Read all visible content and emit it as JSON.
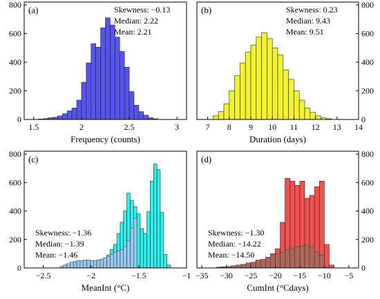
{
  "chart_data": [
    {
      "type": "bar",
      "panel_label": "(a)",
      "xlabel": "Frequency (counts)",
      "xlim": [
        1.4,
        3.1
      ],
      "ylim": [
        0,
        820
      ],
      "xticks": [
        1.5,
        2,
        2.5,
        3
      ],
      "xtick_labels": [
        "1.5",
        "2",
        "2.5",
        "3"
      ],
      "yticks": [
        0,
        200,
        400,
        600,
        800
      ],
      "ytick_labels": [
        "0",
        "200",
        "400",
        "600",
        "800"
      ],
      "yaxis": "left",
      "stats": {
        "skewness": "Skewness: −0.13",
        "median": "Median: 2.22",
        "mean": "Mean: 2.21"
      },
      "stats_position": "top-right",
      "bar_color": "#5555ee",
      "bin_width": 0.05,
      "bins": [
        {
          "x0": 1.55,
          "x1": 1.6,
          "count": 3
        },
        {
          "x0": 1.6,
          "x1": 1.65,
          "count": 6
        },
        {
          "x0": 1.65,
          "x1": 1.7,
          "count": 12
        },
        {
          "x0": 1.7,
          "x1": 1.75,
          "count": 15
        },
        {
          "x0": 1.75,
          "x1": 1.8,
          "count": 25
        },
        {
          "x0": 1.8,
          "x1": 1.85,
          "count": 40
        },
        {
          "x0": 1.85,
          "x1": 1.9,
          "count": 60
        },
        {
          "x0": 1.9,
          "x1": 1.95,
          "count": 80
        },
        {
          "x0": 1.95,
          "x1": 2.0,
          "count": 135
        },
        {
          "x0": 2.0,
          "x1": 2.05,
          "count": 260
        },
        {
          "x0": 2.05,
          "x1": 2.1,
          "count": 395
        },
        {
          "x0": 2.1,
          "x1": 2.15,
          "count": 530
        },
        {
          "x0": 2.15,
          "x1": 2.2,
          "count": 505
        },
        {
          "x0": 2.2,
          "x1": 2.25,
          "count": 640
        },
        {
          "x0": 2.25,
          "x1": 2.3,
          "count": 710
        },
        {
          "x0": 2.3,
          "x1": 2.35,
          "count": 660
        },
        {
          "x0": 2.35,
          "x1": 2.4,
          "count": 575
        },
        {
          "x0": 2.4,
          "x1": 2.45,
          "count": 475
        },
        {
          "x0": 2.45,
          "x1": 2.5,
          "count": 365
        },
        {
          "x0": 2.5,
          "x1": 2.55,
          "count": 195
        },
        {
          "x0": 2.55,
          "x1": 2.6,
          "count": 100
        },
        {
          "x0": 2.6,
          "x1": 2.65,
          "count": 55
        },
        {
          "x0": 2.65,
          "x1": 2.7,
          "count": 30
        },
        {
          "x0": 2.7,
          "x1": 2.75,
          "count": 12
        },
        {
          "x0": 2.75,
          "x1": 2.8,
          "count": 5
        }
      ]
    },
    {
      "type": "bar",
      "panel_label": "(b)",
      "xlabel": "Duration (days)",
      "xlim": [
        6.5,
        14
      ],
      "ylim": [
        0,
        820
      ],
      "xticks": [
        7,
        8,
        9,
        10,
        11,
        12,
        13,
        14
      ],
      "xtick_labels": [
        "7",
        "8",
        "9",
        "10",
        "11",
        "12",
        "13",
        "14"
      ],
      "yticks": [
        0,
        200,
        400,
        600,
        800
      ],
      "ytick_labels": [
        "0",
        "200",
        "400",
        "600",
        "800"
      ],
      "yaxis": "right",
      "stats": {
        "skewness": "Skewness: 0.23",
        "median": "Median: 9.43",
        "mean": "Mean: 9.51"
      },
      "stats_position": "top-right",
      "bar_color": "#f2f230",
      "bin_width": 0.25,
      "bins": [
        {
          "x0": 7.25,
          "x1": 7.5,
          "count": 25
        },
        {
          "x0": 7.5,
          "x1": 7.75,
          "count": 55
        },
        {
          "x0": 7.75,
          "x1": 8.0,
          "count": 110
        },
        {
          "x0": 8.0,
          "x1": 8.25,
          "count": 200
        },
        {
          "x0": 8.25,
          "x1": 8.5,
          "count": 305
        },
        {
          "x0": 8.5,
          "x1": 8.75,
          "count": 395
        },
        {
          "x0": 8.75,
          "x1": 9.0,
          "count": 470
        },
        {
          "x0": 9.0,
          "x1": 9.25,
          "count": 520
        },
        {
          "x0": 9.25,
          "x1": 9.5,
          "count": 575
        },
        {
          "x0": 9.5,
          "x1": 9.75,
          "count": 605
        },
        {
          "x0": 9.75,
          "x1": 10.0,
          "count": 565
        },
        {
          "x0": 10.0,
          "x1": 10.25,
          "count": 500
        },
        {
          "x0": 10.25,
          "x1": 10.5,
          "count": 450
        },
        {
          "x0": 10.5,
          "x1": 10.75,
          "count": 345
        },
        {
          "x0": 10.75,
          "x1": 11.0,
          "count": 280
        },
        {
          "x0": 11.0,
          "x1": 11.25,
          "count": 200
        },
        {
          "x0": 11.25,
          "x1": 11.5,
          "count": 135
        },
        {
          "x0": 11.5,
          "x1": 11.75,
          "count": 80
        },
        {
          "x0": 11.75,
          "x1": 12.0,
          "count": 50
        },
        {
          "x0": 12.0,
          "x1": 12.25,
          "count": 25
        },
        {
          "x0": 12.25,
          "x1": 12.5,
          "count": 12
        },
        {
          "x0": 12.5,
          "x1": 12.75,
          "count": 5
        }
      ]
    },
    {
      "type": "bar",
      "panel_label": "(c)",
      "xlabel": "MeanInt (°C)",
      "xlim": [
        -2.7,
        -1.0
      ],
      "ylim": [
        0,
        820
      ],
      "xticks": [
        -2.5,
        -2,
        -1.5,
        -1
      ],
      "xtick_labels": [
        "−2.5",
        "−2",
        "−1.5",
        "−1"
      ],
      "yticks": [
        0,
        200,
        400,
        600,
        800
      ],
      "ytick_labels": [
        "0",
        "200",
        "400",
        "600",
        "800"
      ],
      "yaxis": "left",
      "stats": {
        "skewness": "Skewness: −1.36",
        "median": "Median: −1.39",
        "mean": "Mean: −1.46"
      },
      "stats_position": "bottom-left",
      "bar_color": "#30f0ee",
      "overlay_color": "#a8c0ec",
      "bin_width": 0.035,
      "bins": [
        {
          "x0": -2.325,
          "x1": -2.29,
          "count": 10,
          "overlay": 10
        },
        {
          "x0": -2.29,
          "x1": -2.255,
          "count": 20,
          "overlay": 20
        },
        {
          "x0": -2.255,
          "x1": -2.22,
          "count": 30,
          "overlay": 30
        },
        {
          "x0": -2.22,
          "x1": -2.185,
          "count": 40,
          "overlay": 40
        },
        {
          "x0": -2.185,
          "x1": -2.15,
          "count": 45,
          "overlay": 45
        },
        {
          "x0": -2.15,
          "x1": -2.115,
          "count": 50,
          "overlay": 50
        },
        {
          "x0": -2.115,
          "x1": -2.08,
          "count": 50,
          "overlay": 50
        },
        {
          "x0": -2.08,
          "x1": -2.045,
          "count": 55,
          "overlay": 55
        },
        {
          "x0": -2.045,
          "x1": -2.01,
          "count": 55,
          "overlay": 55
        },
        {
          "x0": -2.01,
          "x1": -1.975,
          "count": 50,
          "overlay": 50
        },
        {
          "x0": -1.975,
          "x1": -1.94,
          "count": 50,
          "overlay": 50
        },
        {
          "x0": -1.94,
          "x1": -1.905,
          "count": 55,
          "overlay": 55
        },
        {
          "x0": -1.905,
          "x1": -1.87,
          "count": 60,
          "overlay": 60
        },
        {
          "x0": -1.87,
          "x1": -1.835,
          "count": 70,
          "overlay": 70
        },
        {
          "x0": -1.835,
          "x1": -1.8,
          "count": 90,
          "overlay": 80
        },
        {
          "x0": -1.8,
          "x1": -1.765,
          "count": 130,
          "overlay": 95
        },
        {
          "x0": -1.765,
          "x1": -1.73,
          "count": 165,
          "overlay": 110
        },
        {
          "x0": -1.73,
          "x1": -1.695,
          "count": 240,
          "overlay": 120
        },
        {
          "x0": -1.695,
          "x1": -1.66,
          "count": 320,
          "overlay": 130
        },
        {
          "x0": -1.66,
          "x1": -1.625,
          "count": 400,
          "overlay": 150
        },
        {
          "x0": -1.625,
          "x1": -1.59,
          "count": 525,
          "overlay": 190
        },
        {
          "x0": -1.59,
          "x1": -1.555,
          "count": 475,
          "overlay": 280
        },
        {
          "x0": -1.555,
          "x1": -1.52,
          "count": 430,
          "overlay": 350
        },
        {
          "x0": -1.52,
          "x1": -1.485,
          "count": 380,
          "overlay": 0
        },
        {
          "x0": -1.485,
          "x1": -1.45,
          "count": 275,
          "overlay": 0
        },
        {
          "x0": -1.45,
          "x1": -1.415,
          "count": 240,
          "overlay": 0
        },
        {
          "x0": -1.415,
          "x1": -1.38,
          "count": 395,
          "overlay": 0
        },
        {
          "x0": -1.38,
          "x1": -1.345,
          "count": 610,
          "overlay": 0
        },
        {
          "x0": -1.345,
          "x1": -1.31,
          "count": 730,
          "overlay": 0
        },
        {
          "x0": -1.31,
          "x1": -1.275,
          "count": 690,
          "overlay": 0
        },
        {
          "x0": -1.275,
          "x1": -1.24,
          "count": 390,
          "overlay": 0
        },
        {
          "x0": -1.24,
          "x1": -1.205,
          "count": 95,
          "overlay": 0
        },
        {
          "x0": -1.205,
          "x1": -1.17,
          "count": 20,
          "overlay": 0
        }
      ]
    },
    {
      "type": "bar",
      "panel_label": "(d)",
      "xlabel": "CumInt (°Cdays)",
      "xlim": [
        -36,
        -3
      ],
      "ylim": [
        0,
        820
      ],
      "xticks": [
        -35,
        -30,
        -25,
        -20,
        -15,
        -10,
        -5
      ],
      "xtick_labels": [
        "−35",
        "−30",
        "−25",
        "−20",
        "−15",
        "−10",
        "−5"
      ],
      "yticks": [
        0,
        200,
        400,
        600,
        800
      ],
      "ytick_labels": [
        "0",
        "200",
        "400",
        "600",
        "800"
      ],
      "yaxis": "right",
      "stats": {
        "skewness": "Skewness: −1.30",
        "median": "Median: −14.22",
        "mean": "Mean: −14.50"
      },
      "stats_position": "bottom-left",
      "bar_color": "#f05050",
      "overlay_color": "#a06a5c",
      "bin_width": 1,
      "bins": [
        {
          "x0": -32,
          "x1": -31,
          "count": 5,
          "overlay": 5
        },
        {
          "x0": -31,
          "x1": -30,
          "count": 8,
          "overlay": 8
        },
        {
          "x0": -30,
          "x1": -29,
          "count": 10,
          "overlay": 10
        },
        {
          "x0": -29,
          "x1": -28,
          "count": 15,
          "overlay": 15
        },
        {
          "x0": -28,
          "x1": -27,
          "count": 20,
          "overlay": 20
        },
        {
          "x0": -27,
          "x1": -26,
          "count": 25,
          "overlay": 25
        },
        {
          "x0": -26,
          "x1": -25,
          "count": 35,
          "overlay": 35
        },
        {
          "x0": -25,
          "x1": -24,
          "count": 40,
          "overlay": 40
        },
        {
          "x0": -24,
          "x1": -23,
          "count": 55,
          "overlay": 55
        },
        {
          "x0": -23,
          "x1": -22,
          "count": 60,
          "overlay": 60
        },
        {
          "x0": -22,
          "x1": -21,
          "count": 75,
          "overlay": 75
        },
        {
          "x0": -21,
          "x1": -20,
          "count": 100,
          "overlay": 90
        },
        {
          "x0": -20,
          "x1": -19,
          "count": 135,
          "overlay": 100
        },
        {
          "x0": -19,
          "x1": -18,
          "count": 320,
          "overlay": 110
        },
        {
          "x0": -18,
          "x1": -17,
          "count": 630,
          "overlay": 130
        },
        {
          "x0": -17,
          "x1": -16,
          "count": 610,
          "overlay": 140
        },
        {
          "x0": -16,
          "x1": -15,
          "count": 580,
          "overlay": 150
        },
        {
          "x0": -15,
          "x1": -14,
          "count": 610,
          "overlay": 155
        },
        {
          "x0": -14,
          "x1": -13,
          "count": 490,
          "overlay": 160
        },
        {
          "x0": -13,
          "x1": -12,
          "count": 510,
          "overlay": 150
        },
        {
          "x0": -12,
          "x1": -11,
          "count": 570,
          "overlay": 110
        },
        {
          "x0": -11,
          "x1": -10,
          "count": 610,
          "overlay": 90
        },
        {
          "x0": -10,
          "x1": -9,
          "count": 165,
          "overlay": 0
        },
        {
          "x0": -9,
          "x1": -8,
          "count": 20,
          "overlay": 0
        }
      ]
    }
  ]
}
